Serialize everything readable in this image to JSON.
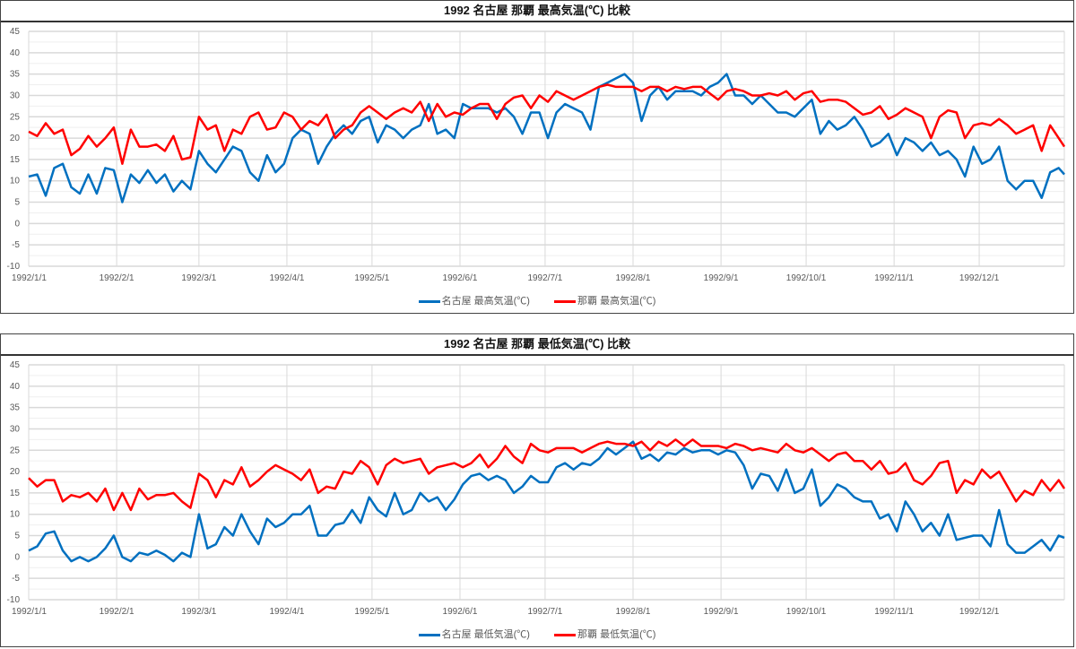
{
  "x_start": "1992/1/1",
  "x_step_days": 3,
  "x_last_day": 365,
  "colors": {
    "nagoya": "#0070C0",
    "naha": "#FF0000"
  },
  "chart_data": [
    {
      "type": "line",
      "title": "1992 名古屋 那覇 最高気温(℃) 比較",
      "xlabel": "",
      "ylabel": "",
      "ylim": [
        -10,
        45
      ],
      "yticks": [
        "45",
        "40",
        "35",
        "30",
        "25",
        "20",
        "15",
        "10",
        "5",
        "0",
        "-5",
        "-10"
      ],
      "xticks": [
        {
          "day": 0,
          "label": "1992/1/1"
        },
        {
          "day": 31,
          "label": "1992/2/1"
        },
        {
          "day": 60,
          "label": "1992/3/1"
        },
        {
          "day": 91,
          "label": "1992/4/1"
        },
        {
          "day": 121,
          "label": "1992/5/1"
        },
        {
          "day": 152,
          "label": "1992/6/1"
        },
        {
          "day": 182,
          "label": "1992/7/1"
        },
        {
          "day": 213,
          "label": "1992/8/1"
        },
        {
          "day": 244,
          "label": "1992/9/1"
        },
        {
          "day": 274,
          "label": "1992/10/1"
        },
        {
          "day": 305,
          "label": "1992/11/1"
        },
        {
          "day": 335,
          "label": "1992/12/1"
        }
      ],
      "grid": true,
      "legend": "bottom",
      "series": [
        {
          "name": "名古屋 最高気温(℃)",
          "color": "#0070C0",
          "values": [
            11,
            11.5,
            6.5,
            13,
            14,
            8.5,
            7,
            11.5,
            7,
            13,
            12.5,
            5,
            11.5,
            9.5,
            12.5,
            9.5,
            11.5,
            7.5,
            10,
            8,
            17,
            14,
            12,
            15,
            18,
            17,
            12,
            10,
            16,
            12,
            14,
            20,
            22,
            21,
            14,
            18,
            21,
            23,
            21,
            24,
            25,
            19,
            23,
            22,
            20,
            22,
            23,
            28,
            21,
            22,
            20,
            28,
            27,
            27,
            27,
            26,
            27,
            25,
            21,
            26,
            26,
            20,
            26,
            28,
            27,
            26,
            22,
            32,
            33,
            34,
            35,
            33,
            24,
            30,
            32,
            29,
            31,
            31,
            31,
            30,
            32,
            33,
            35,
            30,
            30,
            28,
            30,
            28,
            26,
            26,
            25,
            27,
            29,
            21,
            24,
            22,
            23,
            25,
            22,
            18,
            19,
            21,
            16,
            20,
            19,
            17,
            19,
            16,
            17,
            15,
            11,
            18,
            14,
            15,
            18,
            10,
            8,
            10,
            10,
            6,
            12,
            13,
            11.5
          ]
        },
        {
          "name": "那覇 最高気温(℃)",
          "color": "#FF0000",
          "values": [
            21.5,
            20.5,
            23.5,
            21,
            22,
            16,
            17.5,
            20.5,
            18,
            20,
            22.5,
            14,
            22,
            18,
            18,
            18.5,
            17,
            20.5,
            15,
            15.5,
            25,
            22,
            23,
            17,
            22,
            21,
            25,
            26,
            22,
            22.5,
            26,
            25,
            22,
            24,
            23,
            25.5,
            20,
            22,
            23,
            26,
            27.5,
            26,
            24.5,
            26,
            27,
            26,
            28.5,
            24,
            28,
            25,
            26,
            25.5,
            27,
            28,
            28,
            24.5,
            28,
            29.5,
            30,
            27,
            30,
            28.5,
            31,
            30,
            29,
            30,
            31,
            32,
            32.5,
            32,
            32,
            32,
            31,
            32,
            32,
            31,
            32,
            31.5,
            32,
            32,
            30.5,
            29,
            31,
            31.5,
            31,
            30,
            30,
            30.5,
            30,
            31,
            29,
            30.5,
            31,
            28.5,
            29,
            29,
            28.5,
            27,
            25.5,
            26,
            27.5,
            24.5,
            25.5,
            27,
            26,
            25,
            20,
            25,
            26.5,
            26,
            20,
            23,
            23.5,
            23,
            24.5,
            23,
            21,
            22,
            23,
            17,
            23,
            20,
            18
          ]
        }
      ]
    },
    {
      "type": "line",
      "title": "1992 名古屋 那覇 最低気温(℃) 比較",
      "xlabel": "",
      "ylabel": "",
      "ylim": [
        -10,
        45
      ],
      "yticks": [
        "45",
        "40",
        "35",
        "30",
        "25",
        "20",
        "15",
        "10",
        "5",
        "0",
        "-5",
        "-10"
      ],
      "xticks": [
        {
          "day": 0,
          "label": "1992/1/1"
        },
        {
          "day": 31,
          "label": "1992/2/1"
        },
        {
          "day": 60,
          "label": "1992/3/1"
        },
        {
          "day": 91,
          "label": "1992/4/1"
        },
        {
          "day": 121,
          "label": "1992/5/1"
        },
        {
          "day": 152,
          "label": "1992/6/1"
        },
        {
          "day": 182,
          "label": "1992/7/1"
        },
        {
          "day": 213,
          "label": "1992/8/1"
        },
        {
          "day": 244,
          "label": "1992/9/1"
        },
        {
          "day": 274,
          "label": "1992/10/1"
        },
        {
          "day": 305,
          "label": "1992/11/1"
        },
        {
          "day": 335,
          "label": "1992/12/1"
        }
      ],
      "grid": true,
      "legend": "bottom",
      "series": [
        {
          "name": "名古屋 最低気温(℃)",
          "color": "#0070C0",
          "values": [
            1.5,
            2.5,
            5.5,
            6,
            1.5,
            -1,
            0,
            -1,
            0,
            2,
            5,
            0,
            -1,
            1,
            0.5,
            1.5,
            0.5,
            -1,
            1,
            0,
            10,
            2,
            3,
            7,
            5,
            10,
            6,
            3,
            9,
            7,
            8,
            10,
            10,
            12,
            5,
            5,
            7.5,
            8,
            11,
            8,
            14,
            11,
            9.5,
            15,
            10,
            11,
            15,
            13,
            14,
            11,
            13.5,
            17,
            19,
            19.5,
            18,
            19,
            18,
            15,
            16.5,
            19,
            17.5,
            17.5,
            21,
            22,
            20.5,
            22,
            21.5,
            23,
            25.5,
            24,
            25.5,
            27,
            23,
            24,
            22.5,
            24.5,
            24,
            25.5,
            24.5,
            25,
            25,
            24,
            25,
            24.5,
            21.5,
            16,
            19.5,
            19,
            15.5,
            20.5,
            15,
            16,
            20.5,
            12,
            14,
            17,
            16,
            14,
            13,
            13,
            9,
            10,
            6,
            13,
            10,
            6,
            8,
            5,
            10,
            4,
            4.5,
            5,
            5,
            2.5,
            11,
            3,
            1,
            1,
            2.5,
            4,
            1.5,
            5,
            4.5
          ]
        },
        {
          "name": "那覇 最低気温(℃)",
          "color": "#FF0000",
          "values": [
            18.5,
            16.5,
            18,
            18,
            13,
            14.5,
            14,
            15,
            13,
            16,
            11,
            15,
            11,
            16,
            13.5,
            14.5,
            14.5,
            15,
            13,
            11.5,
            19.5,
            18,
            14,
            18,
            17,
            21,
            16.5,
            18,
            20,
            21.5,
            20.5,
            19.5,
            18,
            20.5,
            15,
            16.5,
            16,
            20,
            19.5,
            22.5,
            21,
            17,
            21.5,
            23,
            22,
            22.5,
            23,
            19.5,
            21,
            21.5,
            22,
            21,
            22,
            24,
            21,
            23,
            26,
            23.5,
            22,
            26.5,
            25,
            24.5,
            25.5,
            25.5,
            25.5,
            24.5,
            25.5,
            26.5,
            27,
            26.5,
            26.5,
            26,
            27,
            25,
            27,
            26,
            27.5,
            26,
            27.5,
            26,
            26,
            26,
            25.5,
            26.5,
            26,
            25,
            25.5,
            25,
            24.5,
            26.5,
            25,
            24.5,
            25.5,
            24,
            22.5,
            24,
            24.5,
            22.5,
            22.5,
            20.5,
            22.5,
            19.5,
            20,
            22,
            18,
            17,
            19,
            22,
            22.5,
            15,
            18,
            17,
            20.5,
            18.5,
            20,
            16.5,
            13,
            15.5,
            14.5,
            18,
            15.5,
            18,
            16
          ]
        }
      ]
    }
  ]
}
